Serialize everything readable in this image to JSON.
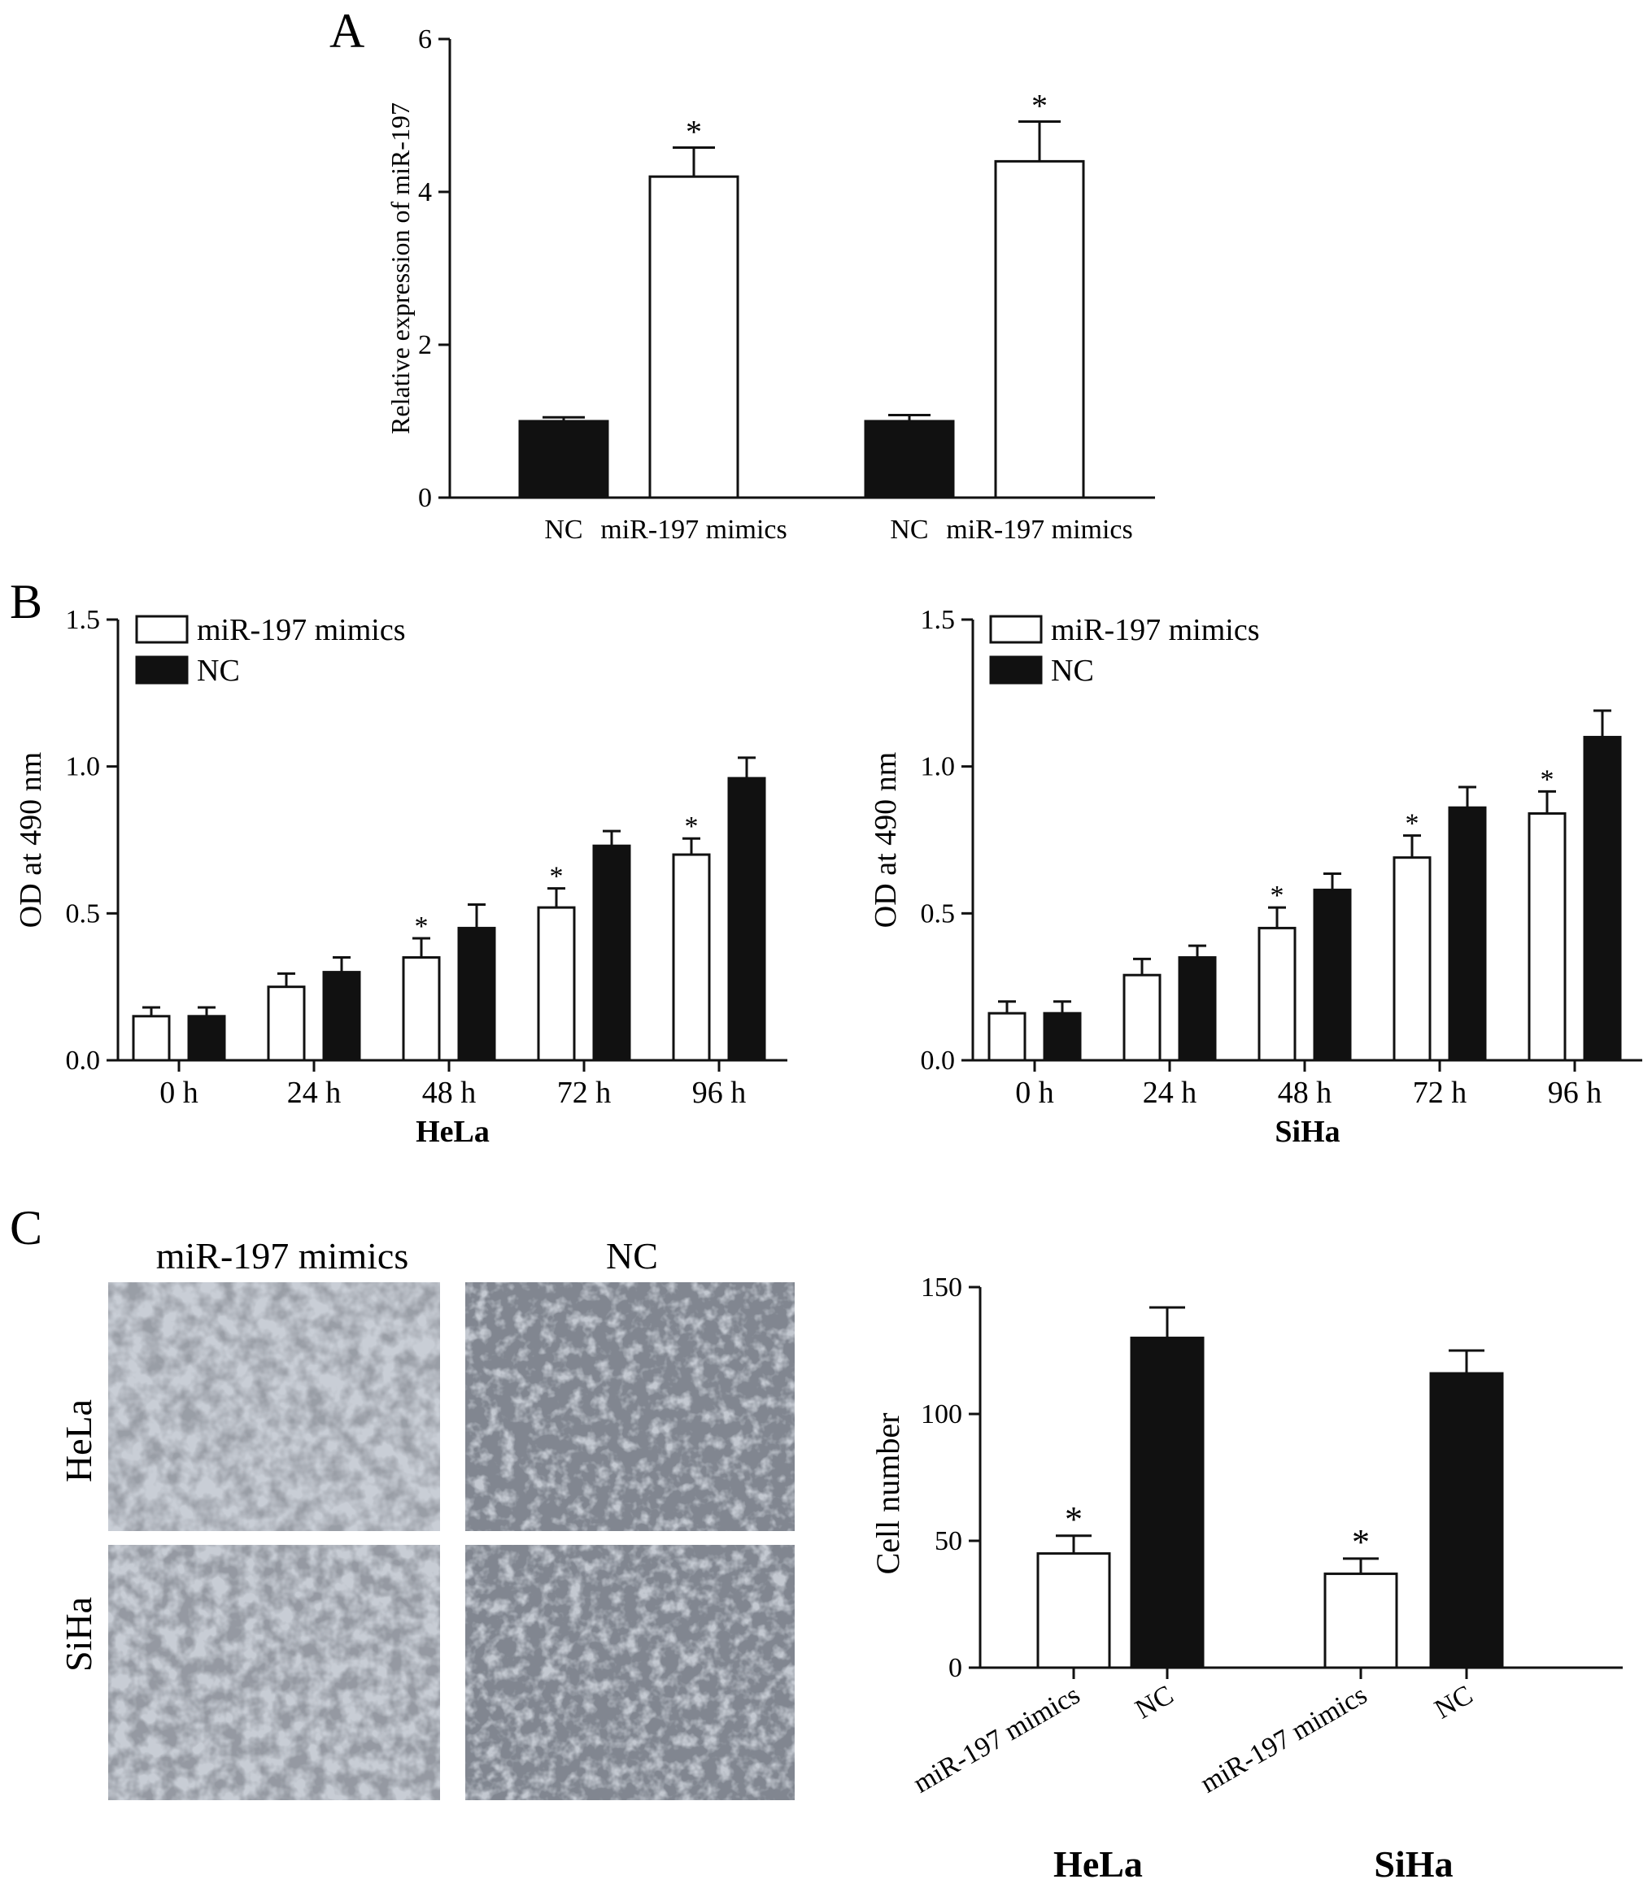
{
  "panels": {
    "a": "A",
    "b": "B",
    "c": "C"
  },
  "colors": {
    "filled": "#111111",
    "open": "#ffffff",
    "stroke": "#111111"
  },
  "chart_data": [
    {
      "id": "A",
      "type": "bar",
      "ylabel": "Relative expression of miR-197",
      "ylim": [
        0,
        6
      ],
      "yticks": [
        "0",
        "2",
        "4",
        "6"
      ],
      "bars": [
        {
          "category": "NC",
          "value": 1.0,
          "error": 0.05,
          "fill": "filled",
          "star": false
        },
        {
          "category": "miR-197 mimics",
          "value": 4.2,
          "error": 0.38,
          "fill": "open",
          "star": true
        },
        {
          "category": "NC",
          "value": 1.0,
          "error": 0.08,
          "fill": "filled",
          "star": false
        },
        {
          "category": "miR-197 mimics",
          "value": 4.4,
          "error": 0.52,
          "fill": "open",
          "star": true
        }
      ]
    },
    {
      "id": "B-HeLa",
      "type": "bar",
      "xlabel": "HeLa",
      "ylabel": "OD at 490 nm",
      "ylim": [
        0,
        1.5
      ],
      "yticks": [
        "0.0",
        "0.5",
        "1.0",
        "1.5"
      ],
      "legend_position": "top-left",
      "categories": [
        "0 h",
        "24 h",
        "48 h",
        "72 h",
        "96 h"
      ],
      "series": [
        {
          "name": "miR-197 mimics",
          "fill": "open",
          "values": [
            0.15,
            0.25,
            0.35,
            0.52,
            0.7
          ],
          "errors": [
            0.03,
            0.045,
            0.065,
            0.065,
            0.055
          ],
          "stars": [
            false,
            false,
            true,
            true,
            true
          ]
        },
        {
          "name": "NC",
          "fill": "filled",
          "values": [
            0.15,
            0.3,
            0.45,
            0.73,
            0.96
          ],
          "errors": [
            0.03,
            0.05,
            0.08,
            0.05,
            0.07
          ]
        }
      ]
    },
    {
      "id": "B-SiHa",
      "type": "bar",
      "xlabel": "SiHa",
      "ylabel": "OD at 490 nm",
      "ylim": [
        0,
        1.5
      ],
      "yticks": [
        "0.0",
        "0.5",
        "1.0",
        "1.5"
      ],
      "legend_position": "top-left",
      "categories": [
        "0 h",
        "24 h",
        "48 h",
        "72 h",
        "96 h"
      ],
      "series": [
        {
          "name": "miR-197 mimics",
          "fill": "open",
          "values": [
            0.16,
            0.29,
            0.45,
            0.69,
            0.84
          ],
          "errors": [
            0.04,
            0.055,
            0.07,
            0.075,
            0.075
          ],
          "stars": [
            false,
            false,
            true,
            true,
            true
          ]
        },
        {
          "name": "NC",
          "fill": "filled",
          "values": [
            0.16,
            0.35,
            0.58,
            0.86,
            1.1
          ],
          "errors": [
            0.04,
            0.04,
            0.055,
            0.07,
            0.09
          ]
        }
      ]
    },
    {
      "id": "C",
      "type": "bar",
      "ylabel": "Cell number",
      "ylim": [
        0,
        150
      ],
      "yticks": [
        "0",
        "50",
        "100",
        "150"
      ],
      "groups": [
        "HeLa",
        "SiHa"
      ],
      "bars": [
        {
          "category": "miR-197 mimics",
          "value": 45,
          "error": 7,
          "fill": "open",
          "star": true
        },
        {
          "category": "NC",
          "value": 130,
          "error": 12,
          "fill": "filled",
          "star": false
        },
        {
          "category": "miR-197 mimics",
          "value": 37,
          "error": 6,
          "fill": "open",
          "star": true
        },
        {
          "category": "NC",
          "value": 116,
          "error": 9,
          "fill": "filled",
          "star": false
        }
      ]
    }
  ],
  "micrographs": {
    "col_labels": [
      "miR-197 mimics",
      "NC"
    ],
    "row_labels": [
      "HeLa",
      "SiHa"
    ],
    "star": "*"
  }
}
